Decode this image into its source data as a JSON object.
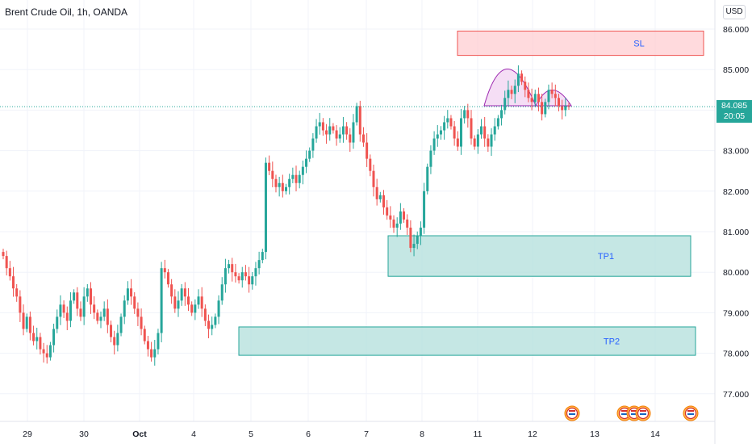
{
  "header": {
    "title": "Brent Crude Oil, 1h, OANDA",
    "currency_button": "USD"
  },
  "last_price": {
    "value": "84.085",
    "countdown": "20:05"
  },
  "colors": {
    "up": "#26a69a",
    "down": "#ef5350",
    "tp_fill": "#b2dfdb",
    "tp_border": "#26a69a",
    "sl_fill": "#ffcdd2",
    "sl_border": "#ef5350",
    "zone_text": "#2962ff",
    "pattern_fill": "#f3d6f2",
    "pattern_line": "#9c27b0"
  },
  "chart_data": {
    "type": "candlestick",
    "x_tick_labels": [
      "29",
      "30",
      "Oct",
      "4",
      "5",
      "6",
      "7",
      "8",
      "11",
      "12",
      "13",
      "14"
    ],
    "y_tick_labels": [
      "86.000",
      "85.000",
      "84.000",
      "83.000",
      "82.000",
      "81.000",
      "80.000",
      "79.000",
      "78.000",
      "77.000"
    ],
    "ylim": [
      76.5,
      86.4
    ],
    "zones": [
      {
        "label": "SL",
        "kind": "stop",
        "from": 85.35,
        "to": 85.95
      },
      {
        "label": "TP1",
        "kind": "target",
        "from": 79.9,
        "to": 80.9
      },
      {
        "label": "TP2",
        "kind": "target",
        "from": 77.95,
        "to": 78.65
      }
    ],
    "pattern": "head-and-shoulders",
    "last_price": 84.085,
    "closes": [
      80.4,
      80.1,
      79.9,
      79.6,
      79.4,
      79.0,
      78.6,
      78.9,
      78.5,
      78.3,
      78.4,
      78.1,
      78.0,
      77.9,
      78.2,
      78.6,
      78.9,
      79.2,
      79.0,
      78.8,
      79.3,
      79.5,
      79.1,
      78.9,
      79.4,
      79.6,
      79.2,
      79.0,
      78.8,
      78.9,
      79.1,
      78.7,
      78.4,
      78.2,
      78.5,
      78.9,
      79.3,
      79.6,
      79.4,
      79.1,
      78.9,
      78.6,
      78.3,
      78.1,
      77.9,
      78.1,
      78.5,
      80.1,
      80.0,
      79.7,
      79.4,
      79.1,
      79.3,
      79.6,
      79.4,
      79.2,
      79.0,
      79.2,
      79.4,
      79.1,
      78.8,
      78.6,
      78.7,
      78.9,
      79.3,
      79.7,
      80.1,
      80.2,
      80.0,
      79.9,
      79.8,
      80.0,
      79.9,
      79.7,
      79.9,
      80.1,
      80.3,
      80.5,
      82.7,
      82.5,
      82.3,
      82.1,
      82.2,
      82.0,
      82.1,
      82.3,
      82.4,
      82.2,
      82.4,
      82.6,
      82.8,
      83.0,
      83.3,
      83.6,
      83.7,
      83.5,
      83.4,
      83.6,
      83.5,
      83.3,
      83.4,
      83.6,
      83.4,
      83.2,
      83.7,
      84.1,
      83.4,
      83.2,
      82.8,
      82.5,
      82.1,
      81.8,
      81.9,
      81.6,
      81.4,
      81.3,
      81.1,
      81.2,
      81.5,
      81.3,
      81.1,
      80.6,
      80.7,
      80.9,
      81.1,
      82.0,
      82.6,
      83.0,
      83.3,
      83.4,
      83.5,
      83.7,
      83.8,
      83.6,
      83.3,
      83.1,
      83.8,
      84.0,
      83.8,
      83.3,
      83.1,
      83.4,
      83.6,
      83.3,
      83.1,
      83.4,
      83.6,
      83.8,
      84.0,
      84.3,
      84.5,
      84.4,
      84.6,
      84.9,
      84.7,
      84.5,
      84.3,
      84.2,
      84.4,
      84.2,
      83.9,
      84.2,
      84.5,
      84.4,
      84.3,
      84.1,
      84.0,
      84.1,
      84.085
    ]
  }
}
